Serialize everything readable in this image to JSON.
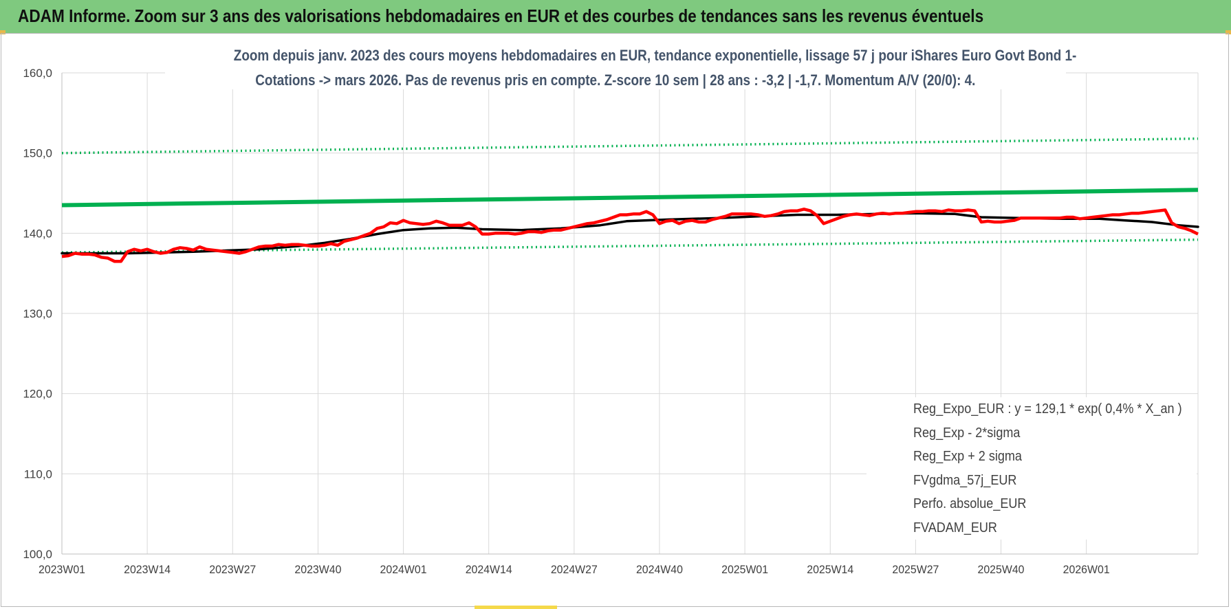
{
  "banner": {
    "title": "ADAM Informe. Zoom sur 3 ans des valorisations hebdomadaires en EUR et des courbes de tendances sans les revenus éventuels"
  },
  "chart_data": {
    "type": "line",
    "title_line1": "Zoom depuis janv. 2023 des cours moyens hebdomadaires en EUR, tendance exponentielle, lissage 57 j pour iShares Euro Govt Bond 1-",
    "title_line2": "Cotations -> mars 2026. Pas de revenus pris en compte. Z-score 10 sem | 28 ans : -3,2 | -1,7. Momentum A/V (20/0): 4.",
    "ylim": [
      100,
      160
    ],
    "yticks": [
      "100,0",
      "110,0",
      "120,0",
      "130,0",
      "140,0",
      "150,0",
      "160,0"
    ],
    "ytick_values": [
      100,
      110,
      120,
      130,
      140,
      150,
      160
    ],
    "x_tick_labels": [
      "2023W01",
      "2023W14",
      "2023W27",
      "2023W40",
      "2024W01",
      "2024W14",
      "2024W27",
      "2024W40",
      "2025W01",
      "2025W14",
      "2025W27",
      "2025W40",
      "2026W01"
    ],
    "x_tick_index": [
      0,
      13,
      26,
      39,
      52,
      65,
      78,
      91,
      104,
      117,
      130,
      143,
      156
    ],
    "x_count": 174,
    "grid": true,
    "legend_position": "bottom-right",
    "series": [
      {
        "name": "Reg_Expo_EUR : y = 129,1 * exp( 0,4% *  X_an )",
        "color": "#00b050",
        "style": "solid-thick",
        "points": [
          [
            0,
            143.5
          ],
          [
            173,
            145.4
          ]
        ]
      },
      {
        "name": "Reg_Exp - 2*sigma",
        "color": "#00b050",
        "style": "dotted",
        "points": [
          [
            0,
            137.6
          ],
          [
            173,
            139.2
          ]
        ]
      },
      {
        "name": "Reg_Exp + 2 sigma",
        "color": "#00b050",
        "style": "dotted",
        "points": [
          [
            0,
            150.0
          ],
          [
            173,
            151.8
          ]
        ]
      },
      {
        "name": "FVgdma_57j_EUR",
        "color": "#000000",
        "style": "solid",
        "points": [
          [
            0,
            137.5
          ],
          [
            10,
            137.5
          ],
          [
            20,
            137.7
          ],
          [
            30,
            138.0
          ],
          [
            36,
            138.4
          ],
          [
            40,
            138.8
          ],
          [
            44,
            139.3
          ],
          [
            48,
            139.9
          ],
          [
            52,
            140.4
          ],
          [
            56,
            140.6
          ],
          [
            60,
            140.7
          ],
          [
            64,
            140.5
          ],
          [
            70,
            140.4
          ],
          [
            76,
            140.6
          ],
          [
            82,
            141.0
          ],
          [
            86,
            141.5
          ],
          [
            92,
            141.7
          ],
          [
            100,
            141.9
          ],
          [
            106,
            142.1
          ],
          [
            112,
            142.3
          ],
          [
            118,
            142.3
          ],
          [
            124,
            142.4
          ],
          [
            130,
            142.5
          ],
          [
            136,
            142.4
          ],
          [
            140,
            142.0
          ],
          [
            146,
            141.9
          ],
          [
            152,
            141.8
          ],
          [
            158,
            141.8
          ],
          [
            162,
            141.6
          ],
          [
            166,
            141.4
          ],
          [
            170,
            141.0
          ],
          [
            173,
            140.8
          ]
        ]
      },
      {
        "name": "Perfo. absolue_EUR",
        "color": "#c00000",
        "style": "dotted-thin",
        "points": []
      },
      {
        "name": "FVADAM_EUR",
        "color": "#ff0000",
        "style": "solid-thick",
        "points": [
          [
            0,
            137.1
          ],
          [
            1,
            137.2
          ],
          [
            2,
            137.5
          ],
          [
            3,
            137.4
          ],
          [
            4,
            137.4
          ],
          [
            5,
            137.3
          ],
          [
            6,
            137.0
          ],
          [
            7,
            136.9
          ],
          [
            8,
            136.5
          ],
          [
            9,
            136.5
          ],
          [
            10,
            137.7
          ],
          [
            11,
            138.0
          ],
          [
            12,
            137.8
          ],
          [
            13,
            138.0
          ],
          [
            14,
            137.7
          ],
          [
            15,
            137.5
          ],
          [
            16,
            137.6
          ],
          [
            17,
            138.0
          ],
          [
            18,
            138.2
          ],
          [
            19,
            138.1
          ],
          [
            20,
            137.9
          ],
          [
            21,
            138.3
          ],
          [
            22,
            138.0
          ],
          [
            23,
            137.9
          ],
          [
            24,
            137.8
          ],
          [
            25,
            137.7
          ],
          [
            26,
            137.6
          ],
          [
            27,
            137.5
          ],
          [
            28,
            137.7
          ],
          [
            29,
            138.0
          ],
          [
            30,
            138.3
          ],
          [
            31,
            138.4
          ],
          [
            32,
            138.4
          ],
          [
            33,
            138.6
          ],
          [
            34,
            138.5
          ],
          [
            35,
            138.6
          ],
          [
            36,
            138.6
          ],
          [
            37,
            138.5
          ],
          [
            38,
            138.4
          ],
          [
            39,
            138.4
          ],
          [
            40,
            138.5
          ],
          [
            41,
            138.7
          ],
          [
            42,
            138.5
          ],
          [
            43,
            139.0
          ],
          [
            44,
            139.2
          ],
          [
            45,
            139.4
          ],
          [
            46,
            139.7
          ],
          [
            47,
            140.0
          ],
          [
            48,
            140.6
          ],
          [
            49,
            140.8
          ],
          [
            50,
            141.3
          ],
          [
            51,
            141.2
          ],
          [
            52,
            141.6
          ],
          [
            53,
            141.3
          ],
          [
            54,
            141.2
          ],
          [
            55,
            141.1
          ],
          [
            56,
            141.2
          ],
          [
            57,
            141.5
          ],
          [
            58,
            141.3
          ],
          [
            59,
            141.0
          ],
          [
            60,
            141.0
          ],
          [
            61,
            141.0
          ],
          [
            62,
            141.3
          ],
          [
            63,
            140.8
          ],
          [
            64,
            139.9
          ],
          [
            65,
            139.9
          ],
          [
            66,
            140.0
          ],
          [
            67,
            140.0
          ],
          [
            68,
            140.0
          ],
          [
            69,
            139.9
          ],
          [
            70,
            140.0
          ],
          [
            71,
            140.2
          ],
          [
            72,
            140.2
          ],
          [
            73,
            140.1
          ],
          [
            74,
            140.3
          ],
          [
            75,
            140.4
          ],
          [
            76,
            140.4
          ],
          [
            77,
            140.6
          ],
          [
            78,
            140.8
          ],
          [
            79,
            141.0
          ],
          [
            80,
            141.2
          ],
          [
            81,
            141.3
          ],
          [
            82,
            141.5
          ],
          [
            83,
            141.7
          ],
          [
            84,
            142.0
          ],
          [
            85,
            142.3
          ],
          [
            86,
            142.3
          ],
          [
            87,
            142.4
          ],
          [
            88,
            142.4
          ],
          [
            89,
            142.7
          ],
          [
            90,
            142.3
          ],
          [
            91,
            141.2
          ],
          [
            92,
            141.5
          ],
          [
            93,
            141.6
          ],
          [
            94,
            141.2
          ],
          [
            95,
            141.5
          ],
          [
            96,
            141.6
          ],
          [
            97,
            141.4
          ],
          [
            98,
            141.4
          ],
          [
            99,
            141.7
          ],
          [
            100,
            141.9
          ],
          [
            101,
            142.1
          ],
          [
            102,
            142.4
          ],
          [
            103,
            142.4
          ],
          [
            104,
            142.4
          ],
          [
            105,
            142.4
          ],
          [
            106,
            142.3
          ],
          [
            107,
            142.1
          ],
          [
            108,
            142.2
          ],
          [
            109,
            142.4
          ],
          [
            110,
            142.7
          ],
          [
            111,
            142.8
          ],
          [
            112,
            142.8
          ],
          [
            113,
            143.0
          ],
          [
            114,
            142.8
          ],
          [
            115,
            142.2
          ],
          [
            116,
            141.2
          ],
          [
            117,
            141.5
          ],
          [
            118,
            141.8
          ],
          [
            119,
            142.1
          ],
          [
            120,
            142.3
          ],
          [
            121,
            142.4
          ],
          [
            122,
            142.3
          ],
          [
            123,
            142.2
          ],
          [
            124,
            142.4
          ],
          [
            125,
            142.5
          ],
          [
            126,
            142.4
          ],
          [
            127,
            142.5
          ],
          [
            128,
            142.5
          ],
          [
            129,
            142.6
          ],
          [
            130,
            142.7
          ],
          [
            131,
            142.7
          ],
          [
            132,
            142.8
          ],
          [
            133,
            142.8
          ],
          [
            134,
            142.7
          ],
          [
            135,
            142.9
          ],
          [
            136,
            142.8
          ],
          [
            137,
            142.8
          ],
          [
            138,
            142.9
          ],
          [
            139,
            142.8
          ],
          [
            140,
            141.4
          ],
          [
            141,
            141.5
          ],
          [
            142,
            141.4
          ],
          [
            143,
            141.4
          ],
          [
            144,
            141.5
          ],
          [
            145,
            141.6
          ],
          [
            146,
            141.9
          ],
          [
            147,
            141.9
          ],
          [
            148,
            141.9
          ],
          [
            149,
            141.9
          ],
          [
            150,
            141.9
          ],
          [
            151,
            141.9
          ],
          [
            152,
            141.9
          ],
          [
            153,
            142.0
          ],
          [
            154,
            142.0
          ],
          [
            155,
            141.8
          ],
          [
            156,
            141.9
          ],
          [
            157,
            142.0
          ],
          [
            158,
            142.1
          ],
          [
            159,
            142.2
          ],
          [
            160,
            142.3
          ],
          [
            161,
            142.3
          ],
          [
            162,
            142.4
          ],
          [
            163,
            142.5
          ],
          [
            164,
            142.5
          ],
          [
            165,
            142.6
          ],
          [
            166,
            142.7
          ],
          [
            167,
            142.8
          ],
          [
            168,
            142.9
          ],
          [
            169,
            141.3
          ],
          [
            170,
            140.8
          ],
          [
            171,
            140.6
          ],
          [
            172,
            140.3
          ],
          [
            173,
            139.9
          ]
        ]
      }
    ]
  },
  "legend": {
    "items": [
      {
        "label": "Reg_Expo_EUR : y = 129,1 * exp( 0,4% *  X_an )",
        "color": "#00b050",
        "style": "solid-thick"
      },
      {
        "label": "Reg_Exp - 2*sigma",
        "color": "#00b050",
        "style": "dotted"
      },
      {
        "label": "Reg_Exp + 2 sigma",
        "color": "#00b050",
        "style": "dotted"
      },
      {
        "label": "FVgdma_57j_EUR",
        "color": "#000000",
        "style": "solid"
      },
      {
        "label": "Perfo. absolue_EUR",
        "color": "#c00000",
        "style": "dotted-thin"
      },
      {
        "label": "FVADAM_EUR",
        "color": "#ff0000",
        "style": "solid-thick"
      }
    ]
  },
  "colors": {
    "banner_bg": "#7fc97f",
    "title_text": "#44546a",
    "axis_text": "#404040",
    "grid": "#d9d9d9"
  }
}
